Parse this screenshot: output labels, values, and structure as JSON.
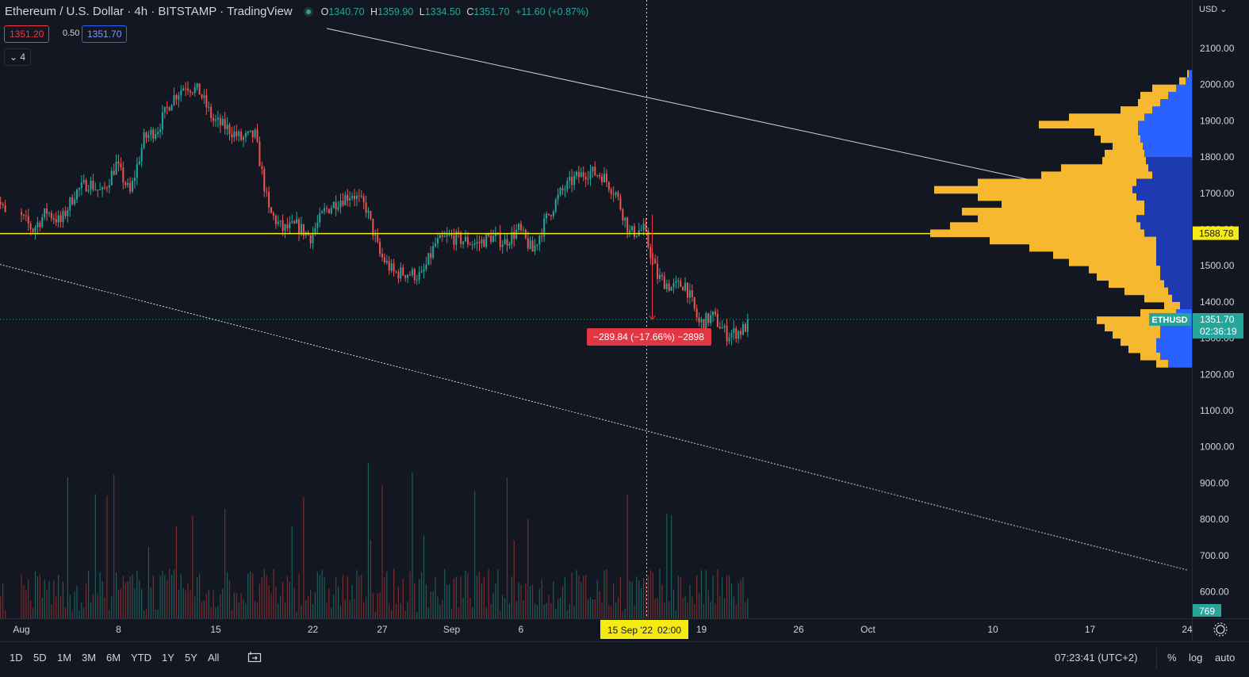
{
  "header": {
    "title": "Ethereum / U.S. Dollar · 4h · BITSTAMP · TradingView",
    "ohlc": {
      "o_label": "O",
      "o": "1340.70",
      "h_label": "H",
      "h": "1359.90",
      "l_label": "L",
      "l": "1334.50",
      "c_label": "C",
      "c": "1351.70",
      "change": "+11.60 (+0.87%)"
    },
    "bid": "1351.20",
    "spread": "0.50",
    "ask": "1351.70",
    "indicators_count": "4"
  },
  "currency_menu": "USD",
  "colors": {
    "background": "#131722",
    "up": "#26a69a",
    "down": "#ef5350",
    "level_line": "#f5ea14",
    "profile_yellow": "#f5b82e",
    "profile_blue": "#1e3ab0",
    "profile_blue_light": "#2962ff",
    "annotation": "#e23642"
  },
  "chart_data": {
    "type": "candlestick",
    "instrument": "ETHUSD",
    "interval": "4h",
    "exchange": "BITSTAMP",
    "price_scale": "USD",
    "y_ticks": [
      "2100.00",
      "2000.00",
      "1900.00",
      "1800.00",
      "1700.00",
      "1600.00",
      "1500.00",
      "1400.00",
      "1300.00",
      "1200.00",
      "1100.00",
      "1000.00",
      "900.00",
      "800.00",
      "700.00",
      "600.00"
    ],
    "y_tick_values": [
      2100,
      2000,
      1900,
      1800,
      1700,
      1600,
      1500,
      1400,
      1300,
      1200,
      1100,
      1000,
      900,
      800,
      700,
      600
    ],
    "x_ticks": [
      {
        "label": "Aug",
        "date": "2022-08-01"
      },
      {
        "label": "8",
        "date": "2022-08-08"
      },
      {
        "label": "15",
        "date": "2022-08-15"
      },
      {
        "label": "22",
        "date": "2022-08-22"
      },
      {
        "label": "27",
        "date": "2022-08-27"
      },
      {
        "label": "Sep",
        "date": "2022-09-01"
      },
      {
        "label": "6",
        "date": "2022-09-06"
      },
      {
        "label": "19",
        "date": "2022-09-19"
      },
      {
        "label": "26",
        "date": "2022-09-26"
      },
      {
        "label": "Oct",
        "date": "2022-10-01"
      },
      {
        "label": "10",
        "date": "2022-10-10"
      },
      {
        "label": "17",
        "date": "2022-10-17"
      },
      {
        "label": "24",
        "date": "2022-10-24"
      }
    ],
    "anchors": [
      {
        "date": "2022-07-30",
        "close": 1725
      },
      {
        "date": "2022-08-01",
        "close": 1640
      },
      {
        "date": "2022-08-02",
        "close": 1600
      },
      {
        "date": "2022-08-03",
        "close": 1650
      },
      {
        "date": "2022-08-04",
        "close": 1620
      },
      {
        "date": "2022-08-05",
        "close": 1700
      },
      {
        "date": "2022-08-06",
        "close": 1730
      },
      {
        "date": "2022-08-07",
        "close": 1700
      },
      {
        "date": "2022-08-08",
        "close": 1780
      },
      {
        "date": "2022-08-09",
        "close": 1700
      },
      {
        "date": "2022-08-10",
        "close": 1850
      },
      {
        "date": "2022-08-11",
        "close": 1880
      },
      {
        "date": "2022-08-12",
        "close": 1960
      },
      {
        "date": "2022-08-13",
        "close": 2000
      },
      {
        "date": "2022-08-14",
        "close": 1980
      },
      {
        "date": "2022-08-15",
        "close": 1900
      },
      {
        "date": "2022-08-16",
        "close": 1880
      },
      {
        "date": "2022-08-17",
        "close": 1850
      },
      {
        "date": "2022-08-18",
        "close": 1860
      },
      {
        "date": "2022-08-19",
        "close": 1650
      },
      {
        "date": "2022-08-20",
        "close": 1600
      },
      {
        "date": "2022-08-21",
        "close": 1610
      },
      {
        "date": "2022-08-22",
        "close": 1580
      },
      {
        "date": "2022-08-23",
        "close": 1650
      },
      {
        "date": "2022-08-24",
        "close": 1680
      },
      {
        "date": "2022-08-25",
        "close": 1700
      },
      {
        "date": "2022-08-26",
        "close": 1660
      },
      {
        "date": "2022-08-27",
        "close": 1530
      },
      {
        "date": "2022-08-28",
        "close": 1480
      },
      {
        "date": "2022-08-29",
        "close": 1480
      },
      {
        "date": "2022-08-30",
        "close": 1470
      },
      {
        "date": "2022-08-31",
        "close": 1560
      },
      {
        "date": "2022-09-01",
        "close": 1580
      },
      {
        "date": "2022-09-02",
        "close": 1570
      },
      {
        "date": "2022-09-03",
        "close": 1560
      },
      {
        "date": "2022-09-04",
        "close": 1580
      },
      {
        "date": "2022-09-05",
        "close": 1565
      },
      {
        "date": "2022-09-06",
        "close": 1600
      },
      {
        "date": "2022-09-07",
        "close": 1540
      },
      {
        "date": "2022-09-08",
        "close": 1630
      },
      {
        "date": "2022-09-09",
        "close": 1700
      },
      {
        "date": "2022-09-10",
        "close": 1740
      },
      {
        "date": "2022-09-11",
        "close": 1760
      },
      {
        "date": "2022-09-12",
        "close": 1750
      },
      {
        "date": "2022-09-13",
        "close": 1700
      },
      {
        "date": "2022-09-14",
        "close": 1590
      },
      {
        "date": "2022-09-15",
        "close": 1600
      },
      {
        "date": "2022-09-16",
        "close": 1470
      },
      {
        "date": "2022-09-17",
        "close": 1440
      },
      {
        "date": "2022-09-18",
        "close": 1450
      },
      {
        "date": "2022-09-19",
        "close": 1340
      },
      {
        "date": "2022-09-20",
        "close": 1360
      },
      {
        "date": "2022-09-21",
        "close": 1310
      },
      {
        "date": "2022-09-22",
        "close": 1320
      },
      {
        "date": "2022-09-23",
        "close": 1351.7
      }
    ],
    "horizontal_level": {
      "price": 1588.78,
      "label": "1588.78"
    },
    "last_price": {
      "symbol": "ETHUSD",
      "price": 1351.7,
      "label": "1351.70",
      "countdown": "02:36:19"
    },
    "measure": {
      "from_price": 1641.5,
      "to_price": 1351.7,
      "label": "−289.84 (−17.66%) −2898"
    },
    "crosshair": {
      "date_label": "15 Sep '22",
      "time_label": "02:00",
      "date": "2022-09-15"
    },
    "trendline_upper": [
      {
        "date": "2022-08-23",
        "price": 2155
      },
      {
        "date": "2022-10-15",
        "price": 1718
      }
    ],
    "trendline_lower": [
      {
        "date": "2022-07-30",
        "price": 1508
      },
      {
        "date": "2022-10-24",
        "price": 660
      }
    ],
    "volume_last": "769",
    "volume_profile": [
      {
        "p": 2030,
        "y": 2,
        "b": 4
      },
      {
        "p": 2010,
        "y": 8,
        "b": 8
      },
      {
        "p": 1990,
        "y": 30,
        "b": 20
      },
      {
        "p": 1970,
        "y": 35,
        "b": 30
      },
      {
        "p": 1950,
        "y": 28,
        "b": 40
      },
      {
        "p": 1930,
        "y": 40,
        "b": 50
      },
      {
        "p": 1910,
        "y": 95,
        "b": 60
      },
      {
        "p": 1890,
        "y": 125,
        "b": 68
      },
      {
        "p": 1870,
        "y": 55,
        "b": 68
      },
      {
        "p": 1850,
        "y": 50,
        "b": 65
      },
      {
        "p": 1830,
        "y": 38,
        "b": 62
      },
      {
        "p": 1810,
        "y": 50,
        "b": 60
      },
      {
        "p": 1790,
        "y": 55,
        "b": 58
      },
      {
        "p": 1770,
        "y": 110,
        "b": 55
      },
      {
        "p": 1750,
        "y": 140,
        "b": 50
      },
      {
        "p": 1730,
        "y": 200,
        "b": 70
      },
      {
        "p": 1710,
        "y": 250,
        "b": 75
      },
      {
        "p": 1690,
        "y": 200,
        "b": 70
      },
      {
        "p": 1670,
        "y": 180,
        "b": 60
      },
      {
        "p": 1650,
        "y": 230,
        "b": 60
      },
      {
        "p": 1630,
        "y": 200,
        "b": 70
      },
      {
        "p": 1610,
        "y": 240,
        "b": 65
      },
      {
        "p": 1590,
        "y": 270,
        "b": 60
      },
      {
        "p": 1570,
        "y": 210,
        "b": 45
      },
      {
        "p": 1550,
        "y": 160,
        "b": 45
      },
      {
        "p": 1530,
        "y": 130,
        "b": 45
      },
      {
        "p": 1510,
        "y": 110,
        "b": 45
      },
      {
        "p": 1490,
        "y": 90,
        "b": 40
      },
      {
        "p": 1470,
        "y": 80,
        "b": 40
      },
      {
        "p": 1450,
        "y": 70,
        "b": 35
      },
      {
        "p": 1430,
        "y": 55,
        "b": 30
      },
      {
        "p": 1410,
        "y": 35,
        "b": 25
      },
      {
        "p": 1390,
        "y": 20,
        "b": 15
      },
      {
        "p": 1370,
        "y": 45,
        "b": 20
      },
      {
        "p": 1350,
        "y": 80,
        "b": 40
      },
      {
        "p": 1330,
        "y": 70,
        "b": 40
      },
      {
        "p": 1310,
        "y": 60,
        "b": 40
      },
      {
        "p": 1290,
        "y": 45,
        "b": 45
      },
      {
        "p": 1270,
        "y": 35,
        "b": 45
      },
      {
        "p": 1250,
        "y": 25,
        "b": 40
      },
      {
        "p": 1230,
        "y": 15,
        "b": 30
      }
    ]
  },
  "bottom_bar": {
    "ranges": [
      "1D",
      "5D",
      "1M",
      "3M",
      "6M",
      "YTD",
      "1Y",
      "5Y",
      "All"
    ],
    "clock": "07:23:41 (UTC+2)",
    "percent": "%",
    "log": "log",
    "auto": "auto"
  }
}
